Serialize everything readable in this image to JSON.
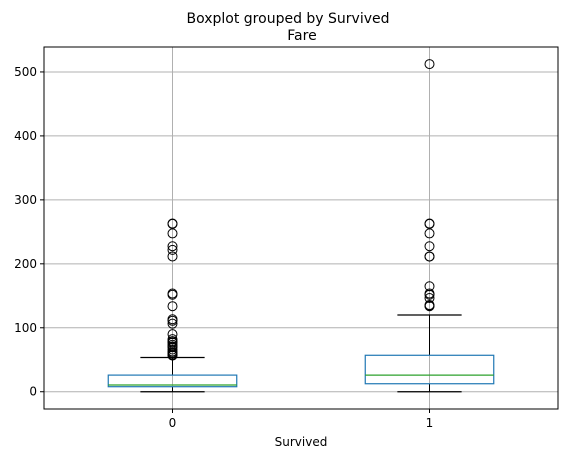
{
  "chart_data": {
    "type": "boxplot",
    "suptitle": "Boxplot grouped by Survived",
    "title": "Fare",
    "xlabel": "Survived",
    "ylabel": "",
    "categories": [
      "0",
      "1"
    ],
    "ylim": [
      -27,
      539
    ],
    "yticks": [
      0,
      100,
      200,
      300,
      400,
      500
    ],
    "grid": true,
    "boxes": [
      {
        "category": "0",
        "whisker_low": 0,
        "q1": 7.85,
        "median": 10.5,
        "q3": 26,
        "whisker_high": 53.5,
        "outliers": [
          56.5,
          57.5,
          59.5,
          61,
          63,
          66,
          69.5,
          71,
          73.5,
          76.7,
          77.3,
          79.2,
          82.2,
          90,
          106.4,
          110.9,
          113.3,
          133.7,
          151.6,
          153.5,
          211.5,
          221.8,
          227.5,
          247.5,
          262.4,
          263
        ]
      },
      {
        "category": "1",
        "whisker_low": 0,
        "q1": 12.5,
        "median": 26,
        "q3": 57,
        "whisker_high": 120,
        "outliers": [
          133.7,
          134.5,
          135.6,
          146.5,
          151.6,
          153.5,
          164.9,
          211.3,
          211.5,
          227.5,
          247.5,
          262.4,
          263,
          512.3
        ]
      }
    ],
    "colors": {
      "box": "#1f77b4",
      "median": "#2ca02c",
      "whisker": "#000000",
      "grid": "#b0b0b0"
    }
  }
}
